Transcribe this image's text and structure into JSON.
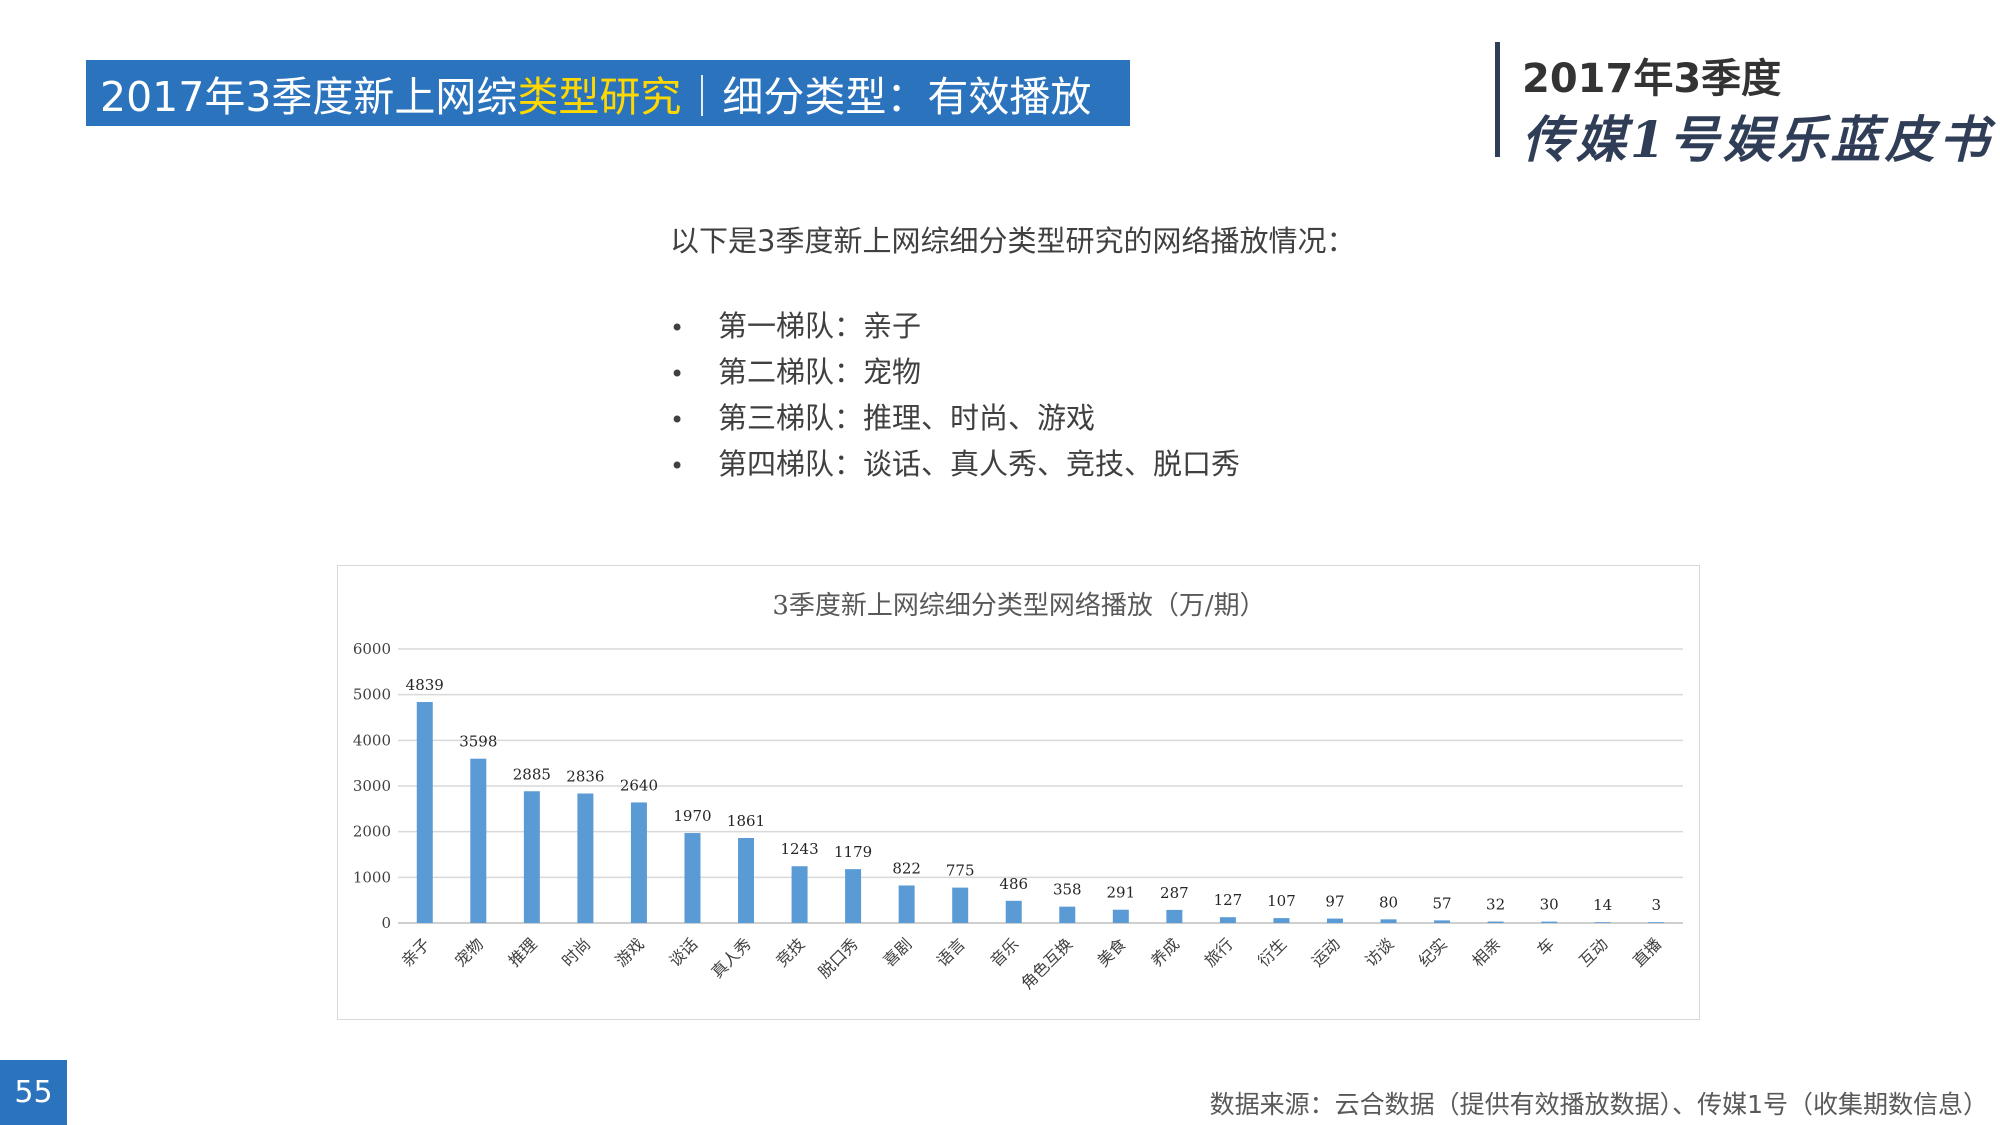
{
  "header": {
    "title_part1": "2017年3季度新上网综",
    "title_highlight": "类型研究",
    "title_part2": "｜细分类型：有效播放"
  },
  "brand": {
    "line1": "2017年3季度",
    "line2": "传媒1号娱乐蓝皮书"
  },
  "intro": "以下是3季度新上网综细分类型研究的网络播放情况：",
  "bullets": [
    "第一梯队：亲子",
    "第二梯队：宠物",
    "第三梯队：推理、时尚、游戏",
    "第四梯队：谈话、真人秀、竞技、脱口秀"
  ],
  "chart_data": {
    "type": "bar",
    "title": "3季度新上网综细分类型网络播放（万/期）",
    "categories": [
      "亲子",
      "宠物",
      "推理",
      "时尚",
      "游戏",
      "谈话",
      "真人秀",
      "竞技",
      "脱口秀",
      "喜剧",
      "语言",
      "音乐",
      "角色互换",
      "美食",
      "养成",
      "旅行",
      "衍生",
      "运动",
      "访谈",
      "纪实",
      "相亲",
      "车",
      "互动",
      "直播"
    ],
    "values": [
      4839,
      3598,
      2885,
      2836,
      2640,
      1970,
      1861,
      1243,
      1179,
      822,
      775,
      486,
      358,
      291,
      287,
      127,
      107,
      97,
      80,
      57,
      32,
      30,
      14,
      3
    ],
    "ylim": [
      0,
      6000
    ],
    "yticks": [
      0,
      1000,
      2000,
      3000,
      4000,
      5000,
      6000
    ],
    "grid": true,
    "data_labels": true,
    "bar_color": "#5b9bd5"
  },
  "page_number": "55",
  "source": "数据来源：云合数据（提供有效播放数据）、传媒1号（收集期数信息）"
}
